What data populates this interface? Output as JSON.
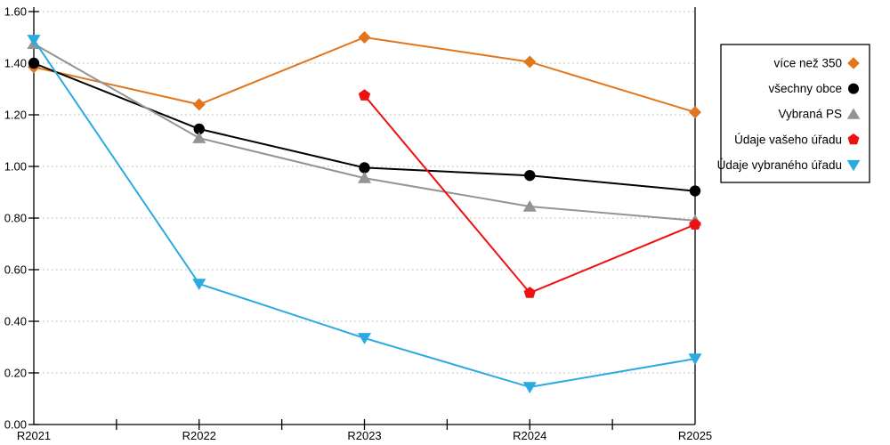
{
  "chart_data": {
    "type": "line",
    "title": "",
    "xlabel": "",
    "ylabel": "",
    "x_categories": [
      "R2021",
      "R2022",
      "R2023",
      "R2024",
      "R2025"
    ],
    "ylim": [
      0,
      1.6
    ],
    "ytick_step": 0.2,
    "ytick_labels": [
      "0.00",
      "0.20",
      "0.40",
      "0.60",
      "0.80",
      "1.00",
      "1.20",
      "1.40",
      "1.60"
    ],
    "grid": "horizontal-dotted",
    "grid_color": "#b0b0b0",
    "axis_color": "#000000",
    "legend_position": "right-outside",
    "series": [
      {
        "name": "více než 350",
        "color": "#E2761D",
        "marker": "diamond",
        "values": [
          1.385,
          1.24,
          1.5,
          1.405,
          1.21
        ]
      },
      {
        "name": "všechny obce",
        "color": "#000000",
        "marker": "circle",
        "values": [
          1.4,
          1.145,
          0.995,
          0.965,
          0.905
        ]
      },
      {
        "name": "Vybraná PS",
        "color": "#949494",
        "marker": "triangle-up",
        "values": [
          1.475,
          1.11,
          0.955,
          0.845,
          0.79
        ]
      },
      {
        "name": "Údaje vašeho úřadu",
        "color": "#EE1111",
        "marker": "pentagon",
        "values": [
          null,
          null,
          1.275,
          0.51,
          0.775
        ]
      },
      {
        "name": "Údaje vybraného úřadu",
        "color": "#29ABE2",
        "marker": "triangle-down",
        "values": [
          1.49,
          0.545,
          0.335,
          0.145,
          0.255
        ]
      }
    ]
  }
}
